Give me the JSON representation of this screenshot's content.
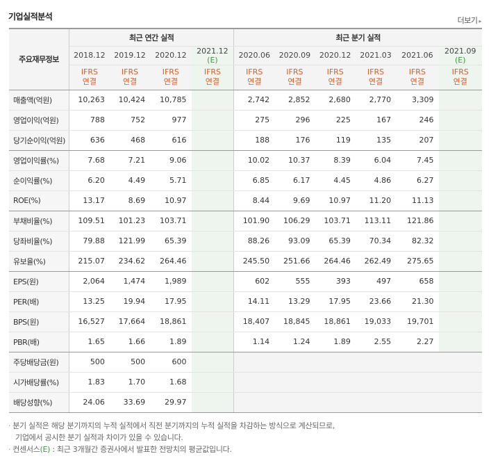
{
  "header": {
    "title": "기업실적분석",
    "more_label": "더보기"
  },
  "table": {
    "corner_label": "주요재무정보",
    "annual_group": "최근 연간 실적",
    "quarter_group": "최근 분기 실적",
    "annual_periods": [
      "2018.12",
      "2019.12",
      "2020.12",
      "2021.12"
    ],
    "quarter_periods": [
      "2020.06",
      "2020.09",
      "2020.12",
      "2021.03",
      "2021.06",
      "2021.09"
    ],
    "est_mark": "(E)",
    "ifrs_top": "IFRS",
    "ifrs_bottom": "연결",
    "rows": [
      {
        "label": "매출액(억원)",
        "annual": [
          "10,263",
          "10,424",
          "10,785",
          ""
        ],
        "quarter": [
          "2,742",
          "2,852",
          "2,680",
          "2,770",
          "3,309",
          ""
        ]
      },
      {
        "label": "영업이익(억원)",
        "annual": [
          "788",
          "752",
          "977",
          ""
        ],
        "quarter": [
          "275",
          "296",
          "225",
          "167",
          "246",
          ""
        ]
      },
      {
        "label": "당기순이익(억원)",
        "annual": [
          "636",
          "468",
          "616",
          ""
        ],
        "quarter": [
          "188",
          "176",
          "119",
          "135",
          "207",
          ""
        ]
      },
      {
        "label": "영업이익률(%)",
        "annual": [
          "7.68",
          "7.21",
          "9.06",
          ""
        ],
        "quarter": [
          "10.02",
          "10.37",
          "8.39",
          "6.04",
          "7.45",
          ""
        ]
      },
      {
        "label": "순이익률(%)",
        "annual": [
          "6.20",
          "4.49",
          "5.71",
          ""
        ],
        "quarter": [
          "6.85",
          "6.17",
          "4.45",
          "4.86",
          "6.27",
          ""
        ]
      },
      {
        "label": "ROE(%)",
        "annual": [
          "13.17",
          "8.69",
          "10.97",
          ""
        ],
        "quarter": [
          "8.44",
          "9.69",
          "10.97",
          "11.20",
          "11.13",
          ""
        ]
      },
      {
        "label": "부채비율(%)",
        "annual": [
          "109.51",
          "101.23",
          "103.71",
          ""
        ],
        "quarter": [
          "101.90",
          "106.29",
          "103.71",
          "113.11",
          "121.86",
          ""
        ]
      },
      {
        "label": "당좌비율(%)",
        "annual": [
          "79.88",
          "121.99",
          "65.39",
          ""
        ],
        "quarter": [
          "88.26",
          "93.09",
          "65.39",
          "70.34",
          "82.32",
          ""
        ]
      },
      {
        "label": "유보율(%)",
        "annual": [
          "215.07",
          "234.62",
          "264.46",
          ""
        ],
        "quarter": [
          "245.50",
          "251.66",
          "264.46",
          "262.49",
          "275.65",
          ""
        ]
      },
      {
        "label": "EPS(원)",
        "annual": [
          "2,064",
          "1,474",
          "1,989",
          ""
        ],
        "quarter": [
          "602",
          "555",
          "393",
          "497",
          "658",
          ""
        ]
      },
      {
        "label": "PER(배)",
        "annual": [
          "13.25",
          "19.94",
          "17.95",
          ""
        ],
        "quarter": [
          "14.11",
          "13.29",
          "17.95",
          "23.66",
          "21.30",
          ""
        ]
      },
      {
        "label": "BPS(원)",
        "annual": [
          "16,527",
          "17,664",
          "18,861",
          ""
        ],
        "quarter": [
          "18,407",
          "18,845",
          "18,861",
          "19,033",
          "19,701",
          ""
        ]
      },
      {
        "label": "PBR(배)",
        "annual": [
          "1.65",
          "1.66",
          "1.89",
          ""
        ],
        "quarter": [
          "1.14",
          "1.24",
          "1.89",
          "2.55",
          "2.27",
          ""
        ]
      },
      {
        "label": "주당배당금(원)",
        "annual": [
          "500",
          "500",
          "600",
          ""
        ],
        "quarter": null
      },
      {
        "label": "시가배당률(%)",
        "annual": [
          "1.83",
          "1.70",
          "1.68",
          ""
        ],
        "quarter": null
      },
      {
        "label": "배당성향(%)",
        "annual": [
          "24.06",
          "33.69",
          "29.97",
          ""
        ],
        "quarter": null
      }
    ]
  },
  "notes": {
    "line1": "분기 실적은 해당 분기까지의 누적 실적에서 직전 분기까지의 누적 실적을 차감하는 방식으로 계산되므로,",
    "line2": "기업에서 공시한 분기 실적과 차이가 있을 수 있습니다.",
    "line3_prefix": "컨센서스",
    "line3_mark": "(E)",
    "line3_suffix": " : 최근 3개월간 증권사에서 발표한 전망치의 평균값입니다.",
    "bullet": "·"
  },
  "colors": {
    "ifrs": "#e05a1e",
    "estimate": "#3c9b3c",
    "estimate_bg": "#eef5ee"
  }
}
